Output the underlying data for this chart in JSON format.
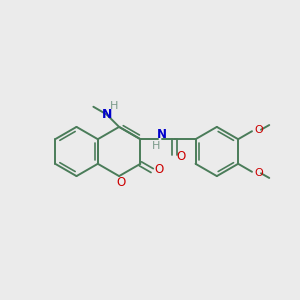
{
  "bg_color": "#ebebeb",
  "bond_color": "#4a7c59",
  "N_color": "#0000cc",
  "O_color": "#cc0000",
  "H_color": "#7a9a8a",
  "lw": 1.4,
  "figsize": [
    3.0,
    3.0
  ],
  "dpi": 100,
  "xlim": [
    0,
    10
  ],
  "ylim": [
    0,
    10
  ]
}
